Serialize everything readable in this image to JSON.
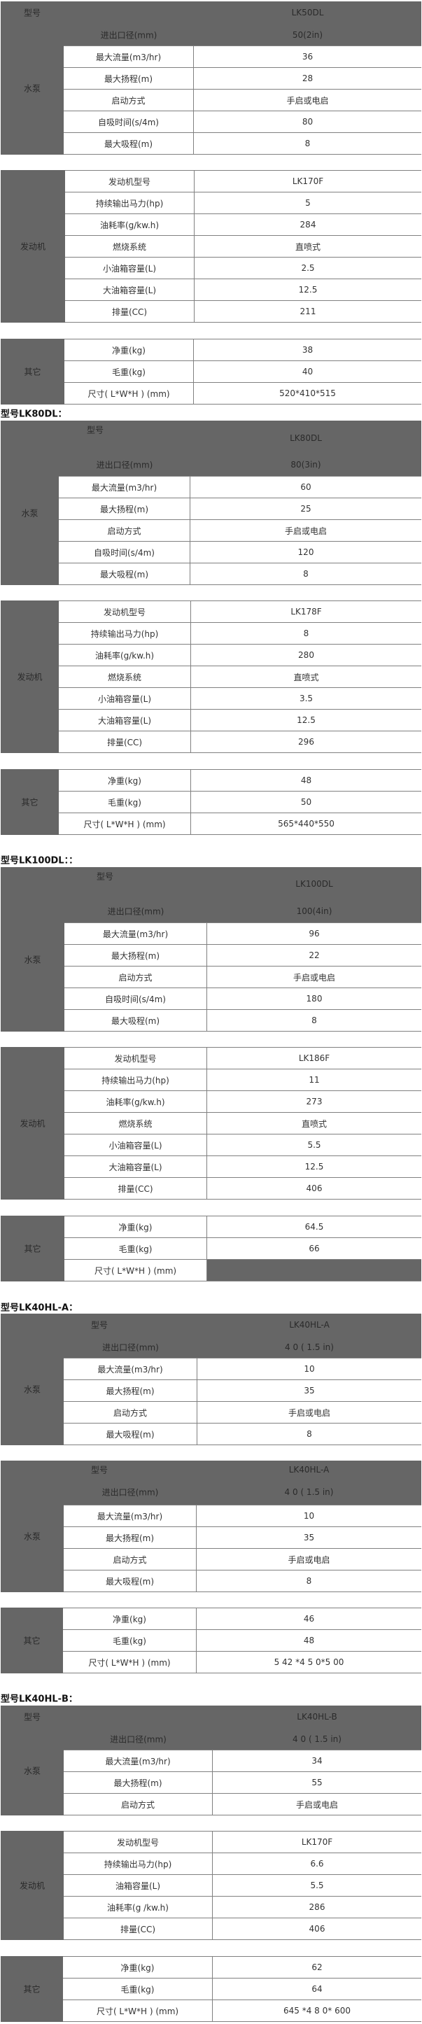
{
  "sections": [
    {
      "heading": "",
      "tables": [
        {
          "group": "水泵",
          "header": {
            "model_label": "型号",
            "model_value": "LK50DL",
            "bore_label": "进出口径(mm)",
            "bore_value": "50(2in)"
          },
          "rows": [
            [
              "最大流量(m3/hr)",
              "36"
            ],
            [
              "最大扬程(m)",
              "28"
            ],
            [
              "启动方式",
              "手启或电启"
            ],
            [
              "自吸时间(s/4m)",
              "80"
            ],
            [
              "最大吸程(m)",
              "8"
            ]
          ]
        },
        {
          "group": "发动机",
          "rows": [
            [
              "发动机型号",
              "LK170F"
            ],
            [
              "持续输出马力(hp)",
              "5"
            ],
            [
              "油耗率(g/kw.h)",
              "284"
            ],
            [
              "燃烧系统",
              "直喷式"
            ],
            [
              "小油箱容量(L)",
              "2.5"
            ],
            [
              "大油箱容量(L)",
              "12.5"
            ],
            [
              "排量(CC)",
              "211"
            ]
          ]
        },
        {
          "group": "其它",
          "rows": [
            [
              "净重(kg)",
              "38"
            ],
            [
              "毛重(kg)",
              "40"
            ],
            [
              "尺寸( L*W*H ) (mm)",
              "520*410*515"
            ]
          ]
        }
      ]
    },
    {
      "heading": "型号LK80DL：",
      "tables": [
        {
          "group": "水泵",
          "header": {
            "model_label": "型号",
            "model_value": "LK80DL",
            "bore_label": "进出口径(mm)",
            "bore_value": "80(3in)"
          },
          "rows": [
            [
              "最大流量(m3/hr)",
              "60"
            ],
            [
              "最大扬程(m)",
              "25"
            ],
            [
              "启动方式",
              "手启或电启"
            ],
            [
              "自吸时间(s/4m)",
              "120"
            ],
            [
              "最大吸程(m)",
              "8"
            ]
          ]
        },
        {
          "group": "发动机",
          "rows": [
            [
              "发动机型号",
              "LK178F"
            ],
            [
              "持续输出马力(hp)",
              "8"
            ],
            [
              "油耗率(g/kw.h)",
              "280"
            ],
            [
              "燃烧系统",
              "直喷式"
            ],
            [
              "小油箱容量(L)",
              "3.5"
            ],
            [
              "大油箱容量(L)",
              "12.5"
            ],
            [
              "排量(CC)",
              "296"
            ]
          ]
        },
        {
          "group": "其它",
          "rows": [
            [
              "净重(kg)",
              "48"
            ],
            [
              "毛重(kg)",
              "50"
            ],
            [
              "尺寸( L*W*H ) (mm)",
              "565*440*550"
            ]
          ]
        }
      ]
    },
    {
      "heading": "型号LK100DL：：",
      "tables": [
        {
          "group": "水泵",
          "header": {
            "model_label": "型号",
            "model_value": "LK100DL",
            "bore_label": "进出口径(mm)",
            "bore_value": "100(4in)"
          },
          "rows": [
            [
              "最大流量(m3/hr)",
              "96"
            ],
            [
              "最大扬程(m)",
              "22"
            ],
            [
              "启动方式",
              "手启或电启"
            ],
            [
              "自吸时间(s/4m)",
              "180"
            ],
            [
              "最大吸程(m)",
              "8"
            ]
          ]
        },
        {
          "group": "发动机",
          "rows": [
            [
              "发动机型号",
              "LK186F"
            ],
            [
              "持续输出马力(hp)",
              "11"
            ],
            [
              "油耗率(g/kw.h)",
              "273"
            ],
            [
              "燃烧系统",
              "直喷式"
            ],
            [
              "小油箱容量(L)",
              "5.5"
            ],
            [
              "大油箱容量(L)",
              "12.5"
            ],
            [
              "排量(CC)",
              "406"
            ]
          ]
        },
        {
          "group": "其它",
          "rows": [
            [
              "净重(kg)",
              "64.5"
            ],
            [
              "毛重(kg)",
              "66"
            ],
            [
              "尺寸( L*W*H ) (mm)",
              null
            ]
          ]
        }
      ]
    },
    {
      "heading": "型号LK40HL-A：",
      "tables": [
        {
          "group": "水泵",
          "header": {
            "model_label": "型号",
            "model_value": "LK40HL-A",
            "bore_label": "进出口径(mm)",
            "bore_value": "4 0 ( 1.5 in)"
          },
          "rows": [
            [
              "最大流量(m3/hr)",
              "10"
            ],
            [
              "最大扬程(m)",
              "35"
            ],
            [
              "启动方式",
              "手启或电启"
            ],
            [
              "最大吸程(m)",
              "8"
            ]
          ]
        },
        {
          "group": "水泵",
          "header": {
            "model_label": "型号",
            "model_value": "LK40HL-A",
            "bore_label": "进出口径(mm)",
            "bore_value": "4 0 ( 1.5 in)"
          },
          "rows": [
            [
              "最大流量(m3/hr)",
              "10"
            ],
            [
              "最大扬程(m)",
              "35"
            ],
            [
              "启动方式",
              "手启或电启"
            ],
            [
              "最大吸程(m)",
              "8"
            ]
          ]
        },
        {
          "group": "其它",
          "rows": [
            [
              "净重(kg)",
              "46"
            ],
            [
              "毛重(kg)",
              "48"
            ],
            [
              "尺寸( L*W*H ) (mm)",
              "5 42 *4 5 0*5 00"
            ]
          ]
        }
      ]
    },
    {
      "heading": "型号LK40HL-B：",
      "tables": [
        {
          "group": "水泵",
          "header": {
            "model_label": "型号",
            "model_value": "LK40HL-B",
            "bore_label": "进出口径(mm)",
            "bore_value": "4 0 ( 1.5 in)"
          },
          "rows": [
            [
              "最大流量(m3/hr)",
              "34"
            ],
            [
              "最大扬程(m)",
              "55"
            ],
            [
              "启动方式",
              "手启或电启"
            ]
          ]
        },
        {
          "group": "发动机",
          "rows": [
            [
              "发动机型号",
              "LK170F"
            ],
            [
              "持续输出马力(hp)",
              "6.6"
            ],
            [
              "油箱容量(L)",
              "5.5"
            ],
            [
              "油耗率(g /kw.h)",
              "286"
            ],
            [
              "排量(CC)",
              "406"
            ]
          ]
        },
        {
          "group": "其它",
          "rows": [
            [
              "净重(kg)",
              "62"
            ],
            [
              "毛重(kg)",
              "64"
            ],
            [
              "尺寸( L*W*H ) (mm)",
              "645 *4 8 0* 600"
            ]
          ]
        }
      ]
    }
  ]
}
